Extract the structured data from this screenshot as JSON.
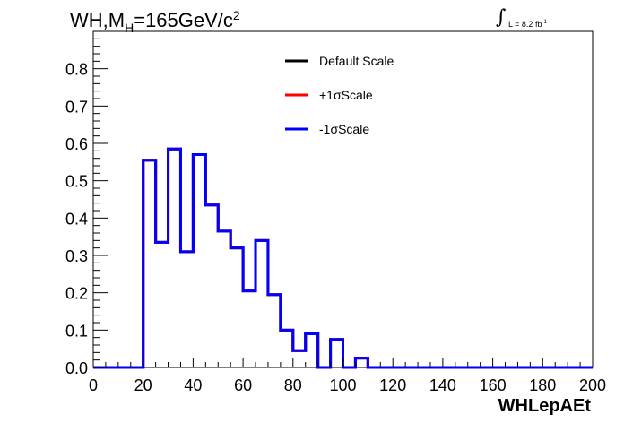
{
  "title": {
    "main": "WH,M",
    "sub": "H",
    "rest": "=165GeV/c",
    "sup": "2"
  },
  "lumi": {
    "label": "L = 8.2 fb",
    "sup": "-1"
  },
  "chart_data": {
    "type": "line",
    "drawstyle": "steps",
    "xlabel": "WHLepAEt",
    "ylabel": "",
    "xlim": [
      0,
      200
    ],
    "ylim": [
      0,
      0.9
    ],
    "xticks": [
      0,
      20,
      40,
      60,
      80,
      100,
      120,
      140,
      160,
      180,
      200
    ],
    "yticks": [
      0.0,
      0.1,
      0.2,
      0.3,
      0.4,
      0.5,
      0.6,
      0.7,
      0.8
    ],
    "ytick_labels": [
      "0.0",
      "0.1",
      "0.2",
      "0.3",
      "0.4",
      "0.5",
      "0.6",
      "0.7",
      "0.8"
    ],
    "grid": false,
    "legend_position": "top-center",
    "bin_edges": [
      0,
      5,
      10,
      15,
      20,
      25,
      30,
      35,
      40,
      45,
      50,
      55,
      60,
      65,
      70,
      75,
      80,
      85,
      90,
      95,
      100,
      105,
      110,
      115,
      120,
      125,
      130,
      135,
      140,
      145,
      150,
      155,
      160,
      165,
      170,
      175,
      180,
      185,
      190,
      195,
      200
    ],
    "series": [
      {
        "name": "Default Scale",
        "color": "#000000",
        "values": [
          0,
          0,
          0,
          0,
          0.555,
          0.335,
          0.585,
          0.31,
          0.57,
          0.435,
          0.365,
          0.32,
          0.205,
          0.34,
          0.195,
          0.1,
          0.045,
          0.09,
          0.0,
          0.075,
          0.0,
          0.025,
          0,
          0,
          0,
          0,
          0,
          0,
          0,
          0,
          0,
          0,
          0,
          0,
          0,
          0,
          0,
          0,
          0,
          0
        ]
      },
      {
        "name": "+1σScale",
        "color": "#ff0000",
        "values": [
          0,
          0,
          0,
          0,
          0.555,
          0.335,
          0.585,
          0.31,
          0.57,
          0.435,
          0.365,
          0.32,
          0.205,
          0.34,
          0.195,
          0.1,
          0.045,
          0.09,
          0.0,
          0.075,
          0.0,
          0.025,
          0,
          0,
          0,
          0,
          0,
          0,
          0,
          0,
          0,
          0,
          0,
          0,
          0,
          0,
          0,
          0,
          0,
          0
        ]
      },
      {
        "name": "-1σScale",
        "color": "#0000ff",
        "values": [
          0,
          0,
          0,
          0,
          0.555,
          0.335,
          0.585,
          0.31,
          0.57,
          0.435,
          0.365,
          0.32,
          0.205,
          0.34,
          0.195,
          0.1,
          0.045,
          0.09,
          0.0,
          0.075,
          0.0,
          0.025,
          0,
          0,
          0,
          0,
          0,
          0,
          0,
          0,
          0,
          0,
          0,
          0,
          0,
          0,
          0,
          0,
          0,
          0
        ]
      }
    ]
  }
}
